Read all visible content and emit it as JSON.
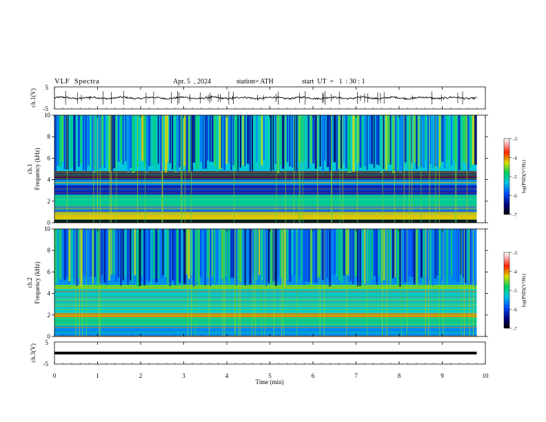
{
  "header": {
    "title": "VLF  Spectra",
    "date": "Apr. 5  , 2024",
    "station": "station= ATH",
    "start_ut": "start  UT  =   1  : 30 : 1"
  },
  "chart_data": [
    {
      "type": "line",
      "name": "ch1-waveform-panel",
      "ylabel": "ch.1(V)",
      "ylim": [
        -5,
        5
      ],
      "yticks": [
        5,
        -5
      ],
      "xlim": [
        0,
        10
      ],
      "x_extent_min": [
        0,
        9.8
      ],
      "baseline_v": 0,
      "noise_amplitude_v": 0.8
    },
    {
      "type": "heatmap",
      "name": "ch1-spectrogram",
      "ylabel": "ch.1\nFrequency (kHz)",
      "ylim": [
        0,
        10
      ],
      "yticks": [
        0,
        2,
        4,
        6,
        8,
        10
      ],
      "xlim": [
        0,
        10
      ],
      "x_extent_min": [
        0,
        9.8
      ],
      "colorbar": {
        "label": "log(PSD)(V²/Hz)",
        "ticks": [
          -3,
          -4,
          -5,
          -6,
          -7
        ],
        "range": [
          -7,
          -3
        ]
      },
      "bands_khz": [
        {
          "from": 0,
          "to": 0.3,
          "level": -7
        },
        {
          "from": 0.3,
          "to": 1.0,
          "level": -4.2
        },
        {
          "from": 1.0,
          "to": 1.5,
          "level": -5.8
        },
        {
          "from": 1.5,
          "to": 2.6,
          "level": -5.0
        },
        {
          "from": 2.6,
          "to": 3.5,
          "level": -6.2
        },
        {
          "from": 3.5,
          "to": 4.0,
          "level": -5.6
        },
        {
          "from": 4.0,
          "to": 4.8,
          "level": -6.6
        },
        {
          "from": 4.8,
          "to": 10,
          "level": -5.3
        }
      ]
    },
    {
      "type": "heatmap",
      "name": "ch2-spectrogram",
      "ylabel": "ch.2\nFrequency (kHz)",
      "ylim": [
        0,
        10
      ],
      "yticks": [
        0,
        2,
        4,
        6,
        8,
        10
      ],
      "xlim": [
        0,
        10
      ],
      "x_extent_min": [
        0,
        9.8
      ],
      "colorbar": {
        "label": "log(PSD)(V²/Hz)",
        "ticks": [
          -3,
          -4,
          -5,
          -6,
          -7
        ],
        "range": [
          -7,
          -3
        ]
      },
      "bands_khz": [
        {
          "from": 0,
          "to": 1.0,
          "level": -5.6
        },
        {
          "from": 1.0,
          "to": 1.8,
          "level": -5.0
        },
        {
          "from": 1.8,
          "to": 2.2,
          "level": -4.0
        },
        {
          "from": 2.2,
          "to": 4.4,
          "level": -5.2
        },
        {
          "from": 4.4,
          "to": 4.8,
          "level": -4.6
        },
        {
          "from": 4.8,
          "to": 10,
          "level": -5.6
        }
      ]
    },
    {
      "type": "line",
      "name": "ch3-waveform-panel",
      "ylabel": "ch.3(V)",
      "ylim": [
        -5,
        5
      ],
      "yticks": [
        5,
        -5
      ],
      "xlim": [
        0,
        10
      ],
      "x_extent_min": [
        0,
        9.8
      ],
      "baseline_v": 0,
      "noise_amplitude_v": 0.1
    }
  ],
  "xaxis": {
    "label": "Time  (min)",
    "ticks": [
      0,
      1,
      2,
      3,
      4,
      5,
      6,
      7,
      8,
      9,
      10
    ]
  }
}
